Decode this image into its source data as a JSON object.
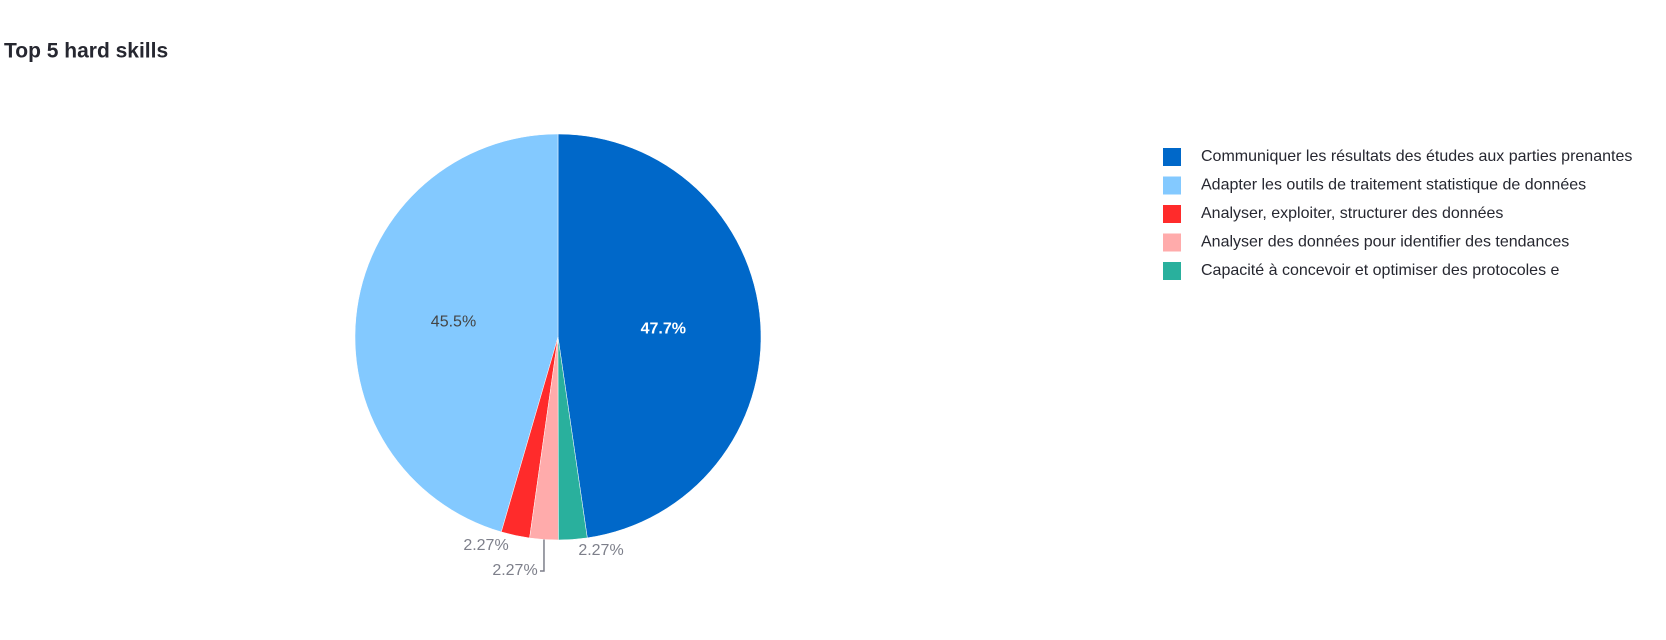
{
  "chart_data": {
    "type": "pie",
    "title": "Top 5 hard skills",
    "categories": [
      "Communiquer les résultats des études aux parties prenantes",
      "Adapter les outils de traitement statistique de données",
      "Analyser, exploiter, structurer des données",
      "Analyser des données pour identifier des tendances",
      "Capacité à concevoir et optimiser des protocoles e"
    ],
    "values": [
      47.7,
      45.5,
      2.27,
      2.27,
      2.27
    ],
    "value_labels": [
      "47.7%",
      "45.5%",
      "2.27%",
      "2.27%",
      "2.27%"
    ],
    "colors": [
      "#0068c9",
      "#83c9ff",
      "#ff2b2b",
      "#ffabab",
      "#29b09d"
    ],
    "legend": "top-right"
  }
}
